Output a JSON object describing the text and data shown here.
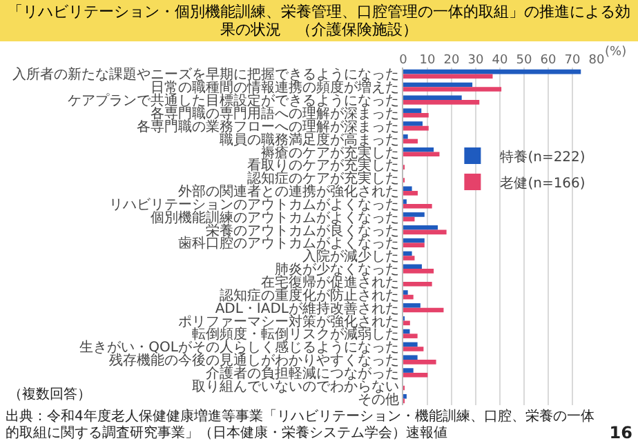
{
  "chart_data": {
    "type": "bar",
    "orientation": "horizontal",
    "title": "「リハビリテーション・個別機能訓練、栄養管理、口腔管理の一体的取組」の推進による効果の状況　（介護保険施設）",
    "xlabel": "(%)",
    "categories": [
      "入所者の新たな課題やニーズを早期に把握できるようになった",
      "日常の職種間の情報連携の頻度が増えた",
      "ケアプランで共通した目標設定ができるようになった",
      "各専門職の専門用語への理解が深まった",
      "各専門職の業務フローへの理解が深まった",
      "職員の職務満足度が高まった",
      "褥瘡のケアが充実した",
      "看取りのケアが充実した",
      "認知症のケアが充実した",
      "外部の関連者との連携が強化された",
      "リハビリテーションのアウトカムがよくなった",
      "個別機能訓練のアウトカムがよくなった",
      "栄養のアウトカムが良くなった",
      "歯科口腔のアウトカムがよくなった",
      "入院が減少した",
      "肺炎が少なくなった",
      "在宅復帰が促進された",
      "認知症の重度化が防止された",
      "ADL・IADLが維持改善された",
      "ポリファーマシー対策が強化された",
      "転倒頻度・転倒リスクが減弱した",
      "生きがい・QOLがその人らしく感じるようになった",
      "残存機能の今後の見通しがわかりやすくなった",
      "介護者の負担軽減につながった",
      "取り組んでいないのでわからない",
      "その他"
    ],
    "series": [
      {
        "name": "特養(n=222)",
        "color": "#1f5bbf",
        "values": [
          73.5,
          28.6,
          24.2,
          7.5,
          8,
          1.9,
          12.6,
          0,
          0,
          3.6,
          1.4,
          8.8,
          14.3,
          8.8,
          3.6,
          7.7,
          0,
          1.9,
          7.1,
          0.4,
          2.7,
          5.9,
          5.9,
          4.2,
          0,
          1.4
        ]
      },
      {
        "name": "老健(n=166)",
        "color": "#e5426a",
        "values": [
          37,
          40.6,
          31.5,
          10.5,
          10.5,
          6,
          15,
          0.5,
          0.5,
          6,
          11.9,
          4.7,
          17.9,
          8.8,
          4.7,
          12.6,
          11.9,
          4.2,
          16.7,
          2.8,
          5.9,
          8.4,
          13.6,
          10.1,
          0.5,
          0.5
        ]
      }
    ],
    "xlim": [
      0,
      80
    ],
    "xticks": [
      0,
      10,
      20,
      30,
      40,
      50,
      60,
      70,
      80
    ],
    "grid": "x",
    "legend": "right",
    "annotations": [
      "（複数回答）",
      "出典：令和4年度老人保健健康増進等事業「リハビリテーション・機能訓練、口腔、栄養の一体的取組に関する調査研究事業」（日本健康・栄養システム学会）速報値",
      "16"
    ]
  }
}
